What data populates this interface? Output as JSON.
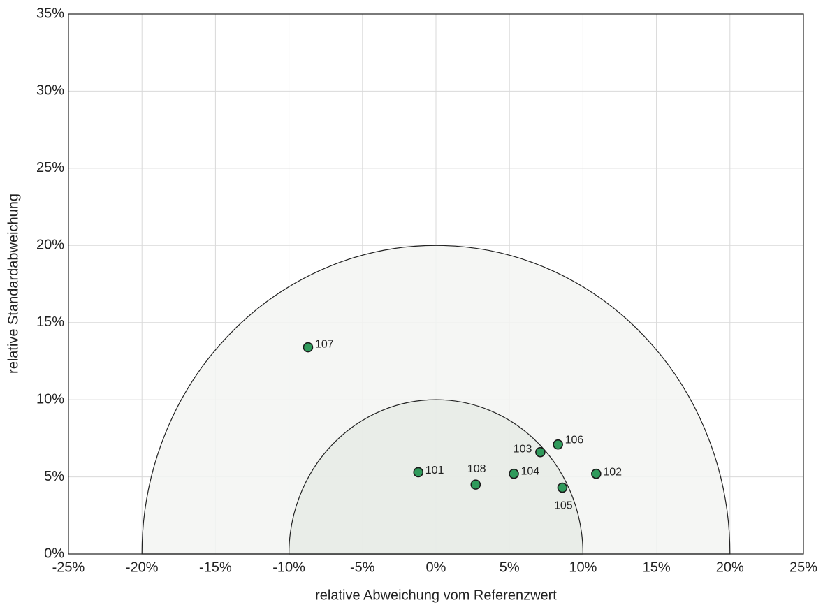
{
  "chart_data": {
    "type": "scatter",
    "xlabel": "relative Abweichung vom Referenzwert",
    "ylabel": "relative Standardabweichung",
    "xlim": [
      -25,
      25
    ],
    "ylim": [
      0,
      35
    ],
    "xticks": [
      {
        "value": -25,
        "label": "-25%"
      },
      {
        "value": -20,
        "label": "-20%"
      },
      {
        "value": -15,
        "label": "-15%"
      },
      {
        "value": -10,
        "label": "-10%"
      },
      {
        "value": -5,
        "label": "-5%"
      },
      {
        "value": 0,
        "label": "0%"
      },
      {
        "value": 5,
        "label": "5%"
      },
      {
        "value": 10,
        "label": "10%"
      },
      {
        "value": 15,
        "label": "15%"
      },
      {
        "value": 20,
        "label": "20%"
      },
      {
        "value": 25,
        "label": "25%"
      }
    ],
    "yticks": [
      {
        "value": 0,
        "label": "0%"
      },
      {
        "value": 5,
        "label": "5%"
      },
      {
        "value": 10,
        "label": "10%"
      },
      {
        "value": 15,
        "label": "15%"
      },
      {
        "value": 20,
        "label": "20%"
      },
      {
        "value": 25,
        "label": "25%"
      },
      {
        "value": 30,
        "label": "30%"
      },
      {
        "value": 35,
        "label": "35%"
      }
    ],
    "grid": true,
    "circles": [
      {
        "radius": 20,
        "color": "#f3f5f2"
      },
      {
        "radius": 10,
        "color": "#e6ebe5"
      }
    ],
    "color": "#2f9a5b",
    "point_labels": [
      "101",
      "102",
      "103",
      "104",
      "105",
      "106",
      "107",
      "108"
    ],
    "x": [
      -1.2,
      10.9,
      7.1,
      5.3,
      8.6,
      8.3,
      -8.7,
      2.7
    ],
    "values": [
      5.3,
      5.2,
      6.6,
      5.2,
      4.3,
      7.1,
      13.4,
      4.5
    ]
  }
}
